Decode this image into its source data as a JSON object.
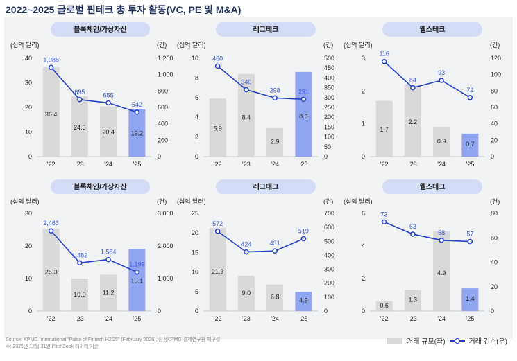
{
  "title": "2022~2025 글로벌 핀테크 총 투자 활동(VC, PE 및 M&A)",
  "footer": {
    "source": "Source: KPMG International \"Pulse of Fintech H2'25\" (February 2026), 삼정KPMG 경제연구원 재구성",
    "note": "주: 2025년 12월 31일 PitchBook 데이터 기준"
  },
  "legend": {
    "bar": "거래 규모(좌)",
    "line": "거래 건수(우)"
  },
  "colors": {
    "bar": "#d9d9d9",
    "highlight": "#8fa5ef",
    "line": "#2340c9",
    "label": "#3b5bdb",
    "pill": "#d5dcf5"
  },
  "chart_data": [
    {
      "type": "bar",
      "title": "블록체인/가상자산",
      "categories": [
        "'22",
        "'23",
        "'24",
        "'25"
      ],
      "left_unit": "(십억 달러)",
      "right_unit": "(건)",
      "ylim": [
        0,
        40
      ],
      "yticks": [
        0,
        10,
        20,
        30,
        40
      ],
      "y2lim": [
        0,
        1200
      ],
      "y2ticks": [
        "0",
        "200",
        "400",
        "600",
        "800",
        "1,000",
        "1,200"
      ],
      "series": [
        {
          "name": "거래 규모(좌)",
          "values": [
            36.4,
            24.5,
            20.4,
            19.2
          ]
        },
        {
          "name": "거래 건수(우)",
          "values": [
            1088,
            695,
            655,
            542
          ],
          "labels": [
            "1,088",
            "695",
            "655",
            "542"
          ]
        }
      ]
    },
    {
      "type": "bar",
      "title": "레그테크",
      "categories": [
        "'22",
        "'23",
        "'24",
        "'25"
      ],
      "left_unit": "(십억 달러)",
      "right_unit": "(건)",
      "ylim": [
        0,
        10
      ],
      "yticks": [
        0,
        2,
        4,
        6,
        8,
        10
      ],
      "y2lim": [
        0,
        500
      ],
      "y2ticks": [
        "0",
        "50",
        "100",
        "150",
        "200",
        "250",
        "300",
        "350",
        "400",
        "450",
        "500"
      ],
      "series": [
        {
          "name": "거래 규모(좌)",
          "values": [
            5.9,
            8.4,
            2.9,
            8.6
          ]
        },
        {
          "name": "거래 건수(우)",
          "values": [
            460,
            340,
            298,
            291
          ],
          "labels": [
            "460",
            "340",
            "298",
            "291"
          ]
        }
      ]
    },
    {
      "type": "bar",
      "title": "웰스테크",
      "categories": [
        "'22",
        "'23",
        "'24",
        "'25"
      ],
      "left_unit": "(십억 달러)",
      "right_unit": "(건)",
      "ylim": [
        0,
        3
      ],
      "yticks": [
        0,
        1,
        2,
        3
      ],
      "y2lim": [
        0,
        120
      ],
      "y2ticks": [
        "0",
        "20",
        "40",
        "60",
        "80",
        "100",
        "120"
      ],
      "series": [
        {
          "name": "거래 규모(좌)",
          "values": [
            1.7,
            2.2,
            0.9,
            0.7
          ]
        },
        {
          "name": "거래 건수(우)",
          "values": [
            116,
            84,
            93,
            72
          ],
          "labels": [
            "116",
            "84",
            "93",
            "72"
          ]
        }
      ]
    },
    {
      "type": "bar",
      "title": "블록체인/가상자산",
      "categories": [
        "'22",
        "'23",
        "'24",
        "'25"
      ],
      "left_unit": "(십억 달러)",
      "right_unit": "(건)",
      "ylim": [
        0,
        30
      ],
      "yticks": [
        0,
        10,
        20,
        30
      ],
      "y2lim": [
        0,
        3000
      ],
      "y2ticks": [
        "0",
        "1,000",
        "2,000",
        "3,000"
      ],
      "series": [
        {
          "name": "거래 규모(좌)",
          "values": [
            25.3,
            10.0,
            11.2,
            19.1
          ]
        },
        {
          "name": "거래 건수(우)",
          "values": [
            2463,
            1482,
            1584,
            1199
          ],
          "labels": [
            "2,463",
            "1,482",
            "1,584",
            "1,199"
          ]
        }
      ]
    },
    {
      "type": "bar",
      "title": "레그테크",
      "categories": [
        "'22",
        "'23",
        "'24",
        "'25"
      ],
      "left_unit": "(십억 달러)",
      "right_unit": "(건)",
      "ylim": [
        0,
        25
      ],
      "yticks": [
        0,
        5,
        10,
        15,
        20,
        25
      ],
      "y2lim": [
        0,
        700
      ],
      "y2ticks": [
        "0",
        "100",
        "200",
        "300",
        "400",
        "500",
        "600",
        "700"
      ],
      "series": [
        {
          "name": "거래 규모(좌)",
          "values": [
            21.3,
            9.0,
            6.8,
            4.9
          ]
        },
        {
          "name": "거래 건수(우)",
          "values": [
            572,
            424,
            431,
            519
          ],
          "labels": [
            "572",
            "424",
            "431",
            "519"
          ]
        }
      ]
    },
    {
      "type": "bar",
      "title": "웰스테크",
      "categories": [
        "'22",
        "'23",
        "'24",
        "'25"
      ],
      "left_unit": "(십억 달러)",
      "right_unit": "(건)",
      "ylim": [
        0,
        6
      ],
      "yticks": [
        0,
        2,
        4,
        6
      ],
      "y2lim": [
        0,
        80
      ],
      "y2ticks": [
        "0",
        "20",
        "40",
        "60",
        "80"
      ],
      "series": [
        {
          "name": "거래 규모(좌)",
          "values": [
            0.6,
            1.3,
            4.9,
            1.4
          ]
        },
        {
          "name": "거래 건수(우)",
          "values": [
            73,
            63,
            58,
            57
          ],
          "labels": [
            "73",
            "63",
            "58",
            "57"
          ]
        }
      ]
    }
  ]
}
